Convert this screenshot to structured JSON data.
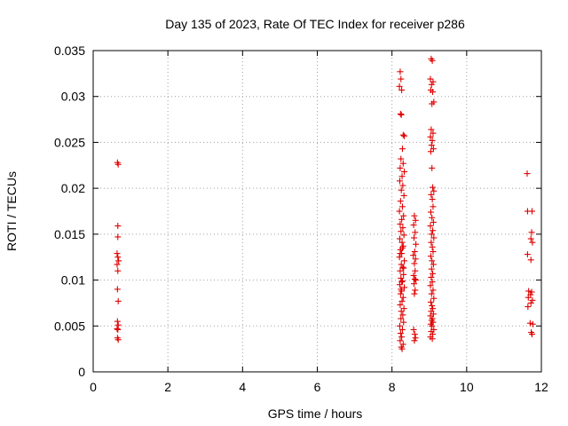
{
  "chart_data": {
    "type": "scatter",
    "title": "Day 135 of 2023, Rate Of TEC Index for receiver p286",
    "xlabel": "GPS time / hours",
    "ylabel": "ROTI / TECUs",
    "xlim": [
      0,
      12
    ],
    "ylim": [
      0,
      0.035
    ],
    "xticks": [
      0,
      2,
      4,
      6,
      8,
      10,
      12
    ],
    "xtick_labels": [
      "0",
      "2",
      "4",
      "6",
      "8",
      "10",
      "12"
    ],
    "yticks": [
      0,
      0.005,
      0.01,
      0.015,
      0.02,
      0.025,
      0.03,
      0.035
    ],
    "ytick_labels": [
      "0",
      "0.005",
      "0.01",
      "0.015",
      "0.02",
      "0.025",
      "0.03",
      "0.035"
    ],
    "grid": true,
    "marker": "+",
    "marker_color": "#e00000",
    "series": [
      {
        "name": "ROTI",
        "points": [
          [
            0.65,
            0.0228
          ],
          [
            0.67,
            0.0226
          ],
          [
            0.66,
            0.0159
          ],
          [
            0.66,
            0.0147
          ],
          [
            0.64,
            0.0129
          ],
          [
            0.66,
            0.0125
          ],
          [
            0.68,
            0.0121
          ],
          [
            0.64,
            0.0117
          ],
          [
            0.66,
            0.011
          ],
          [
            0.65,
            0.009
          ],
          [
            0.67,
            0.0077
          ],
          [
            0.65,
            0.0055
          ],
          [
            0.67,
            0.0051
          ],
          [
            0.64,
            0.0047
          ],
          [
            0.66,
            0.0046
          ],
          [
            0.65,
            0.0037
          ],
          [
            0.67,
            0.0035
          ],
          [
            8.22,
            0.0327
          ],
          [
            8.24,
            0.0319
          ],
          [
            8.2,
            0.0311
          ],
          [
            8.26,
            0.0307
          ],
          [
            8.23,
            0.0281
          ],
          [
            8.25,
            0.028
          ],
          [
            8.3,
            0.0258
          ],
          [
            8.33,
            0.0257
          ],
          [
            8.28,
            0.0243
          ],
          [
            8.24,
            0.0232
          ],
          [
            8.3,
            0.0227
          ],
          [
            8.22,
            0.0222
          ],
          [
            8.33,
            0.0218
          ],
          [
            8.27,
            0.0213
          ],
          [
            8.21,
            0.0208
          ],
          [
            8.29,
            0.0203
          ],
          [
            8.25,
            0.0198
          ],
          [
            8.32,
            0.0192
          ],
          [
            8.23,
            0.0186
          ],
          [
            8.28,
            0.018
          ],
          [
            8.2,
            0.0175
          ],
          [
            8.31,
            0.017
          ],
          [
            8.26,
            0.0166
          ],
          [
            8.22,
            0.0161
          ],
          [
            8.29,
            0.0157
          ],
          [
            8.24,
            0.0153
          ],
          [
            8.32,
            0.0149
          ],
          [
            8.21,
            0.0145
          ],
          [
            8.27,
            0.0141
          ],
          [
            8.3,
            0.0137
          ],
          [
            8.23,
            0.0133
          ],
          [
            8.26,
            0.0129
          ],
          [
            8.2,
            0.0125
          ],
          [
            8.33,
            0.0121
          ],
          [
            8.25,
            0.0117
          ],
          [
            8.29,
            0.0114
          ],
          [
            8.22,
            0.011
          ],
          [
            8.31,
            0.0106
          ],
          [
            8.24,
            0.0102
          ],
          [
            8.28,
            0.0099
          ],
          [
            8.21,
            0.0095
          ],
          [
            8.33,
            0.0092
          ],
          [
            8.26,
            0.0088
          ],
          [
            8.23,
            0.0085
          ],
          [
            8.3,
            0.0081
          ],
          [
            8.27,
            0.0077
          ],
          [
            8.22,
            0.0073
          ],
          [
            8.32,
            0.0069
          ],
          [
            8.25,
            0.0066
          ],
          [
            8.29,
            0.0062
          ],
          [
            8.24,
            0.0058
          ],
          [
            8.31,
            0.0054
          ],
          [
            8.21,
            0.005
          ],
          [
            8.28,
            0.0046
          ],
          [
            8.23,
            0.0042
          ],
          [
            8.26,
            0.0038
          ],
          [
            8.22,
            0.0034
          ],
          [
            8.3,
            0.003
          ],
          [
            8.25,
            0.0027
          ],
          [
            8.27,
            0.0025
          ],
          [
            8.28,
            0.0135
          ],
          [
            8.22,
            0.0129
          ],
          [
            8.31,
            0.0113
          ],
          [
            8.26,
            0.0098
          ],
          [
            8.24,
            0.009
          ],
          [
            8.6,
            0.017
          ],
          [
            8.63,
            0.0165
          ],
          [
            8.58,
            0.016
          ],
          [
            8.62,
            0.0152
          ],
          [
            8.59,
            0.0146
          ],
          [
            8.64,
            0.0139
          ],
          [
            8.61,
            0.0131
          ],
          [
            8.57,
            0.0127
          ],
          [
            8.63,
            0.0123
          ],
          [
            8.6,
            0.0118
          ],
          [
            8.62,
            0.011
          ],
          [
            8.58,
            0.0105
          ],
          [
            8.61,
            0.0101
          ],
          [
            8.64,
            0.01
          ],
          [
            8.59,
            0.0096
          ],
          [
            8.62,
            0.0089
          ],
          [
            8.6,
            0.0085
          ],
          [
            8.58,
            0.0046
          ],
          [
            8.61,
            0.0041
          ],
          [
            8.63,
            0.0037
          ],
          [
            8.6,
            0.0034
          ],
          [
            9.05,
            0.0341
          ],
          [
            9.08,
            0.0339
          ],
          [
            9.03,
            0.0319
          ],
          [
            9.1,
            0.0316
          ],
          [
            9.06,
            0.0313
          ],
          [
            9.04,
            0.0307
          ],
          [
            9.09,
            0.0305
          ],
          [
            9.12,
            0.0294
          ],
          [
            9.07,
            0.0292
          ],
          [
            9.05,
            0.0264
          ],
          [
            9.1,
            0.026
          ],
          [
            9.03,
            0.0256
          ],
          [
            9.08,
            0.0252
          ],
          [
            9.06,
            0.0247
          ],
          [
            9.11,
            0.0243
          ],
          [
            9.04,
            0.024
          ],
          [
            9.07,
            0.0222
          ],
          [
            9.09,
            0.0201
          ],
          [
            9.12,
            0.0197
          ],
          [
            9.05,
            0.0193
          ],
          [
            9.08,
            0.0188
          ],
          [
            9.1,
            0.018
          ],
          [
            9.04,
            0.0174
          ],
          [
            9.07,
            0.0168
          ],
          [
            9.11,
            0.0163
          ],
          [
            9.03,
            0.0159
          ],
          [
            9.09,
            0.0154
          ],
          [
            9.06,
            0.015
          ],
          [
            9.12,
            0.0146
          ],
          [
            9.05,
            0.0141
          ],
          [
            9.08,
            0.0136
          ],
          [
            9.1,
            0.0131
          ],
          [
            9.04,
            0.0126
          ],
          [
            9.07,
            0.0121
          ],
          [
            9.11,
            0.0117
          ],
          [
            9.06,
            0.0112
          ],
          [
            9.09,
            0.0107
          ],
          [
            9.05,
            0.0103
          ],
          [
            9.08,
            0.0098
          ],
          [
            9.03,
            0.0094
          ],
          [
            9.1,
            0.0089
          ],
          [
            9.06,
            0.0085
          ],
          [
            9.12,
            0.008
          ],
          [
            9.04,
            0.0076
          ],
          [
            9.07,
            0.0072
          ],
          [
            9.09,
            0.0069
          ],
          [
            9.05,
            0.0066
          ],
          [
            9.11,
            0.0063
          ],
          [
            9.03,
            0.0061
          ],
          [
            9.08,
            0.0058
          ],
          [
            9.06,
            0.0056
          ],
          [
            9.1,
            0.0054
          ],
          [
            9.04,
            0.0052
          ],
          [
            9.07,
            0.005
          ],
          [
            9.12,
            0.0046
          ],
          [
            9.05,
            0.0044
          ],
          [
            9.09,
            0.0041
          ],
          [
            9.03,
            0.0038
          ],
          [
            9.08,
            0.0036
          ],
          [
            11.62,
            0.0216
          ],
          [
            11.63,
            0.0175
          ],
          [
            11.75,
            0.0175
          ],
          [
            11.74,
            0.0152
          ],
          [
            11.72,
            0.0145
          ],
          [
            11.76,
            0.0141
          ],
          [
            11.63,
            0.0128
          ],
          [
            11.72,
            0.0122
          ],
          [
            11.66,
            0.0088
          ],
          [
            11.74,
            0.0087
          ],
          [
            11.71,
            0.0084
          ],
          [
            11.65,
            0.0081
          ],
          [
            11.76,
            0.0078
          ],
          [
            11.72,
            0.0075
          ],
          [
            11.64,
            0.0071
          ],
          [
            11.7,
            0.0053
          ],
          [
            11.77,
            0.0052
          ],
          [
            11.73,
            0.0043
          ],
          [
            11.75,
            0.0041
          ]
        ]
      }
    ]
  }
}
